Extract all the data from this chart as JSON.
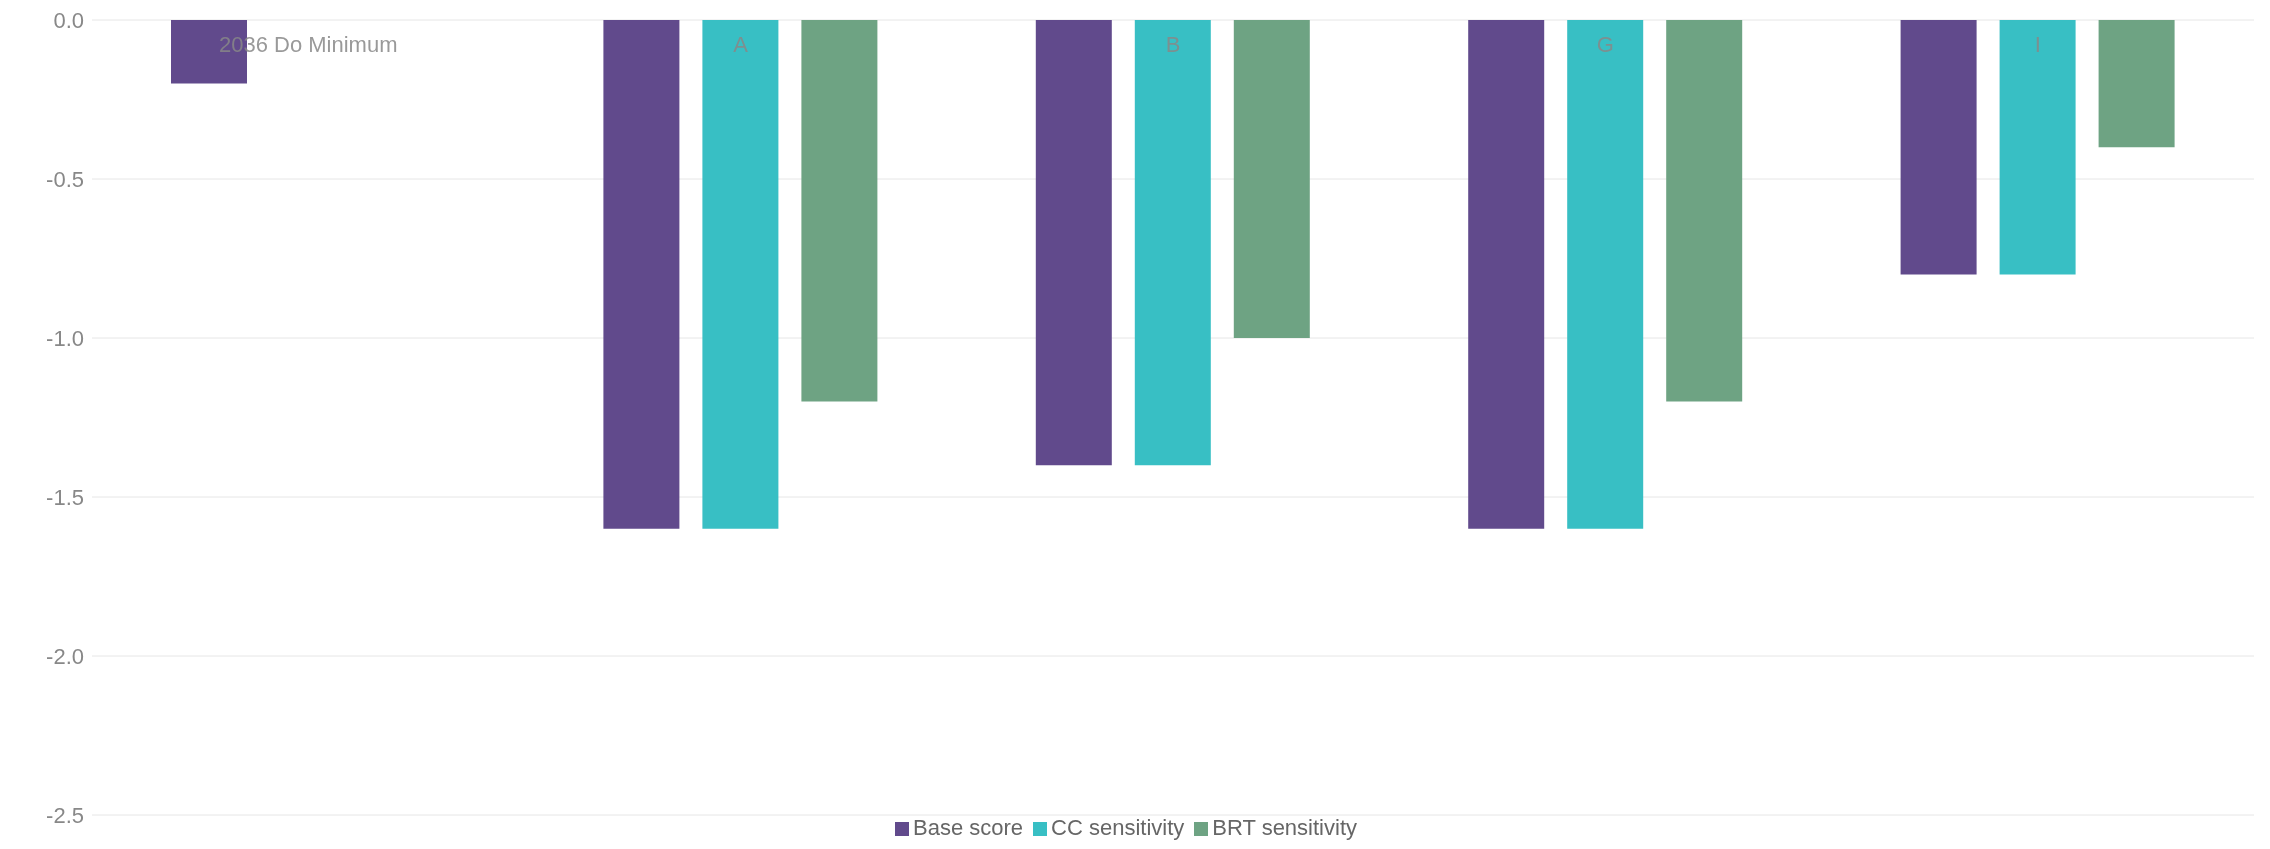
{
  "chart_data": {
    "type": "bar",
    "categories": [
      "2036 Do Minimum",
      "A",
      "B",
      "G",
      "I"
    ],
    "series": [
      {
        "name": "Base score",
        "color": "#614a8c",
        "values": [
          -0.2,
          -1.6,
          -1.4,
          -1.6,
          -0.8
        ]
      },
      {
        "name": "CC sensitivity",
        "color": "#38bfc4",
        "values": [
          null,
          -1.6,
          -1.4,
          -1.6,
          -0.8
        ]
      },
      {
        "name": "BRT sensitivity",
        "color": "#6ea383",
        "values": [
          null,
          -1.2,
          -1.0,
          -1.2,
          -0.4
        ]
      }
    ],
    "ylim": [
      -2.5,
      0
    ],
    "yticks": [
      {
        "value": 0,
        "label": "0.0"
      },
      {
        "value": -0.5,
        "label": "-0.5"
      },
      {
        "value": -1,
        "label": "-1.0"
      },
      {
        "value": -1.5,
        "label": "-1.5"
      },
      {
        "value": -2,
        "label": "-2.0"
      },
      {
        "value": -2.5,
        "label": "-2.5"
      }
    ],
    "grid": "y",
    "legend": "bottom"
  }
}
